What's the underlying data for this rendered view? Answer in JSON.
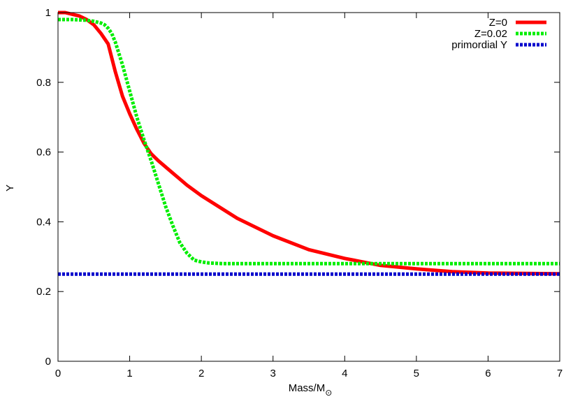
{
  "chart_data": {
    "type": "line",
    "title": "",
    "xlabel": "Mass/M",
    "xlabel_subscript": "⊙",
    "ylabel": "Y",
    "xlim": [
      0,
      7
    ],
    "ylim": [
      0,
      1
    ],
    "x_ticks": [
      0,
      1,
      2,
      3,
      4,
      5,
      6,
      7
    ],
    "y_ticks": [
      0,
      0.2,
      0.4,
      0.6,
      0.8,
      1
    ],
    "x_tick_labels": [
      "0",
      "1",
      "2",
      "3",
      "4",
      "5",
      "6",
      "7"
    ],
    "y_tick_labels": [
      "0",
      "0.2",
      "0.4",
      "0.6",
      "0.8",
      "1"
    ],
    "grid": false,
    "legend_position": "top-right",
    "series": [
      {
        "name": "Z=0",
        "color": "#ff0000",
        "style": "solid",
        "x": [
          0,
          0.1,
          0.2,
          0.3,
          0.4,
          0.5,
          0.6,
          0.7,
          0.8,
          0.9,
          1.0,
          1.1,
          1.2,
          1.3,
          1.4,
          1.6,
          1.8,
          2.0,
          2.5,
          3.0,
          3.5,
          4.0,
          4.5,
          5.0,
          5.5,
          6.0,
          6.5,
          7.0
        ],
        "y": [
          1.0,
          1.0,
          0.995,
          0.99,
          0.98,
          0.965,
          0.94,
          0.91,
          0.83,
          0.76,
          0.71,
          0.665,
          0.625,
          0.595,
          0.575,
          0.54,
          0.505,
          0.475,
          0.41,
          0.36,
          0.32,
          0.295,
          0.275,
          0.265,
          0.257,
          0.253,
          0.252,
          0.251
        ]
      },
      {
        "name": "Z=0.02",
        "color": "#00ee00",
        "style": "dotted",
        "x": [
          0,
          0.2,
          0.4,
          0.5,
          0.6,
          0.65,
          0.7,
          0.75,
          0.8,
          0.9,
          1.0,
          1.1,
          1.2,
          1.3,
          1.4,
          1.5,
          1.6,
          1.7,
          1.8,
          1.9,
          2.0,
          2.1,
          2.2,
          2.3,
          2.5,
          3.0,
          4.0,
          5.0,
          6.0,
          7.0
        ],
        "y": [
          0.98,
          0.98,
          0.978,
          0.975,
          0.97,
          0.965,
          0.955,
          0.94,
          0.915,
          0.85,
          0.775,
          0.7,
          0.635,
          0.575,
          0.51,
          0.445,
          0.39,
          0.34,
          0.31,
          0.29,
          0.285,
          0.282,
          0.281,
          0.28,
          0.28,
          0.28,
          0.28,
          0.28,
          0.28,
          0.28
        ]
      },
      {
        "name": "primordial Y",
        "color": "#0000cc",
        "style": "dotted",
        "x": [
          0,
          7
        ],
        "y": [
          0.25,
          0.25
        ]
      }
    ]
  }
}
